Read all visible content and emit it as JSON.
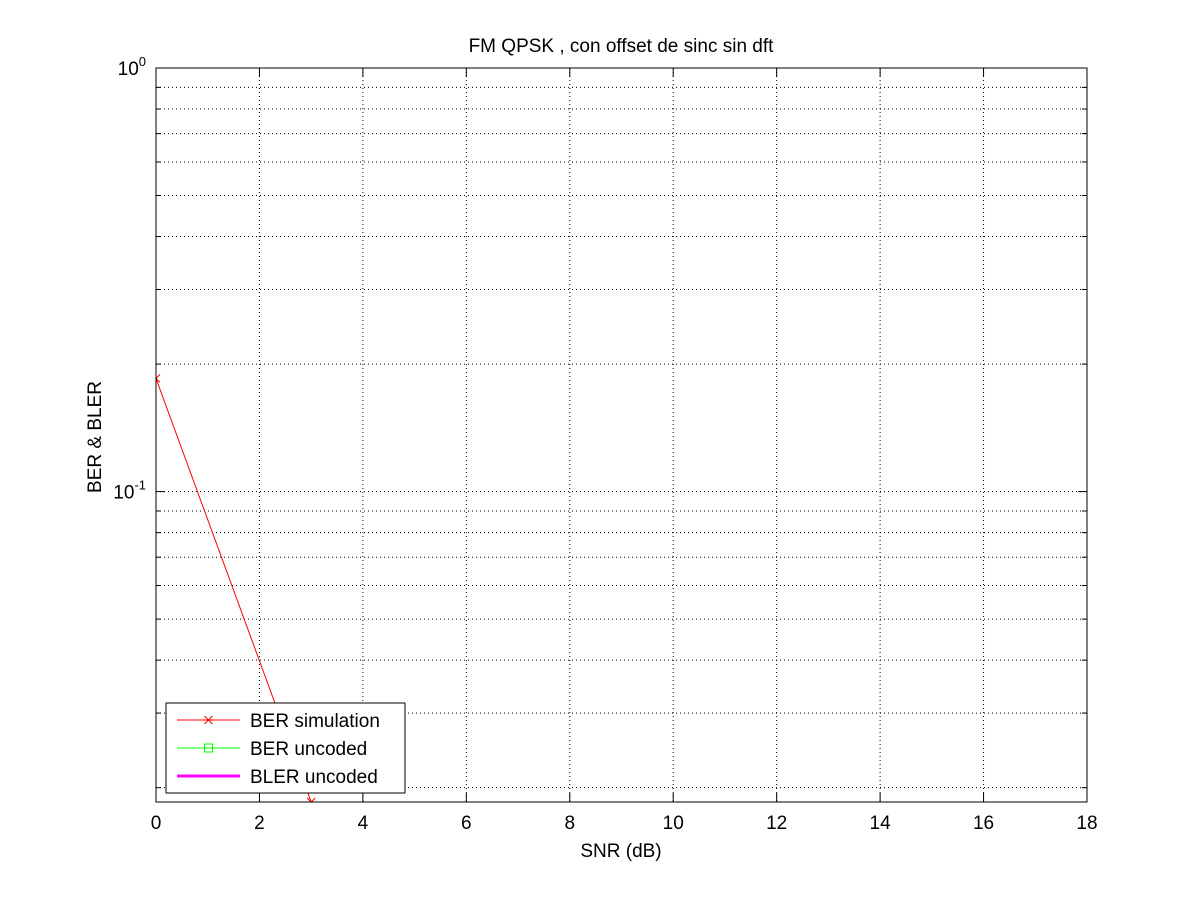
{
  "chart_data": {
    "type": "line",
    "title": "FM QPSK , con offset de sinc  sin dft",
    "xlabel": "SNR (dB)",
    "ylabel": "BER & BLER",
    "xscale": "linear",
    "yscale": "log",
    "xlim": [
      0,
      18
    ],
    "ylim": [
      0.0185,
      1
    ],
    "grid": true,
    "grid_style": "dotted",
    "legend_position": "bottom-left",
    "xticks": [
      "0",
      "2",
      "4",
      "6",
      "8",
      "10",
      "12",
      "14",
      "16",
      "18"
    ],
    "yticks": [
      {
        "base": "10",
        "exp": "0",
        "value": 1
      },
      {
        "base": "10",
        "exp": "-1",
        "value": 0.1
      }
    ],
    "series": [
      {
        "name": "BER simulation",
        "color": "#ff0000",
        "marker": "x",
        "line_width": "thin",
        "x": [
          0,
          3
        ],
        "y": [
          0.185,
          0.0185
        ]
      },
      {
        "name": "BER uncoded",
        "color": "#00ff00",
        "marker": "square",
        "line_width": "thin",
        "x": [],
        "y": []
      },
      {
        "name": "BLER uncoded",
        "color": "#ff00ff",
        "marker": "none",
        "line_width": "thick",
        "x": [],
        "y": []
      }
    ]
  }
}
